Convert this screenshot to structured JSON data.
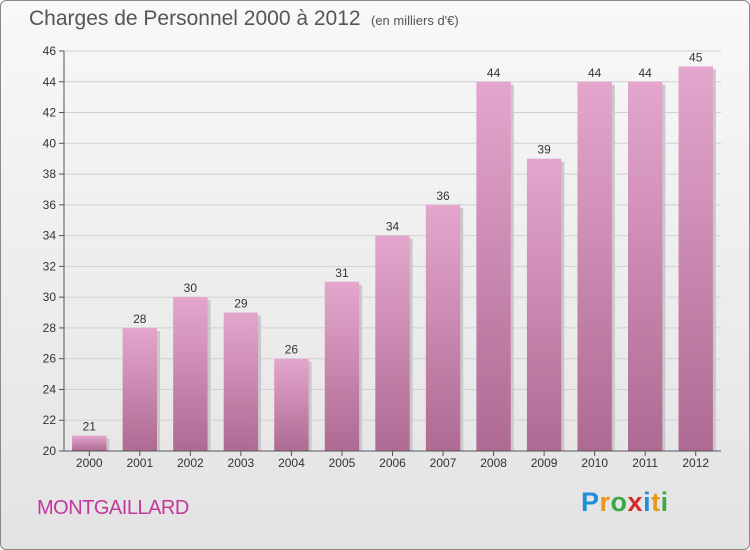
{
  "header": {
    "title": "Charges de Personnel 2000 à 2012",
    "subtitle": "(en milliers d'€)"
  },
  "footer": {
    "place": "MONTGAILLARD",
    "logo_letters": [
      "P",
      "r",
      "o",
      "x",
      "i",
      "t",
      "i"
    ],
    "logo_colors": [
      "#1f8fd8",
      "#e9961e",
      "#3aa843",
      "#d52a2a",
      "#1f8fd8",
      "#e9961e",
      "#3aa843"
    ]
  },
  "colors": {
    "bar_light": "#e4a6cd",
    "bar_dark": "#ae6a92",
    "grid": "#d0d0d0",
    "axis": "#555555"
  },
  "chart_data": {
    "type": "bar",
    "title": "Charges de Personnel 2000 à 2012",
    "subtitle": "(en milliers d'€)",
    "categories": [
      "2000",
      "2001",
      "2002",
      "2003",
      "2004",
      "2005",
      "2006",
      "2007",
      "2008",
      "2009",
      "2010",
      "2011",
      "2012"
    ],
    "values": [
      21,
      28,
      30,
      29,
      26,
      31,
      34,
      36,
      44,
      39,
      44,
      44,
      45
    ],
    "xlabel": "",
    "ylabel": "",
    "ylim": [
      20,
      46
    ],
    "yticks": [
      20,
      22,
      24,
      26,
      28,
      30,
      32,
      34,
      36,
      38,
      40,
      42,
      44,
      46
    ],
    "grid": true,
    "data_labels": true
  }
}
